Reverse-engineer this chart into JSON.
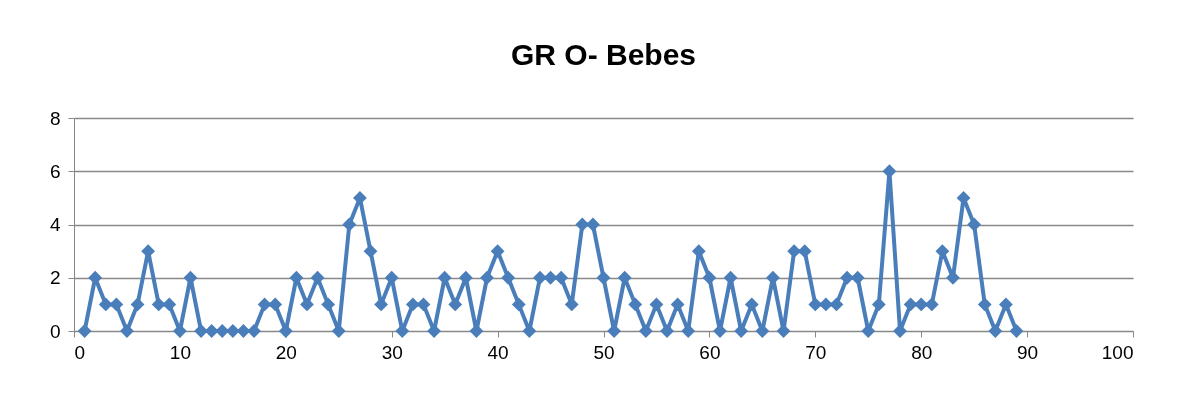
{
  "chart_data": {
    "type": "line",
    "title": "GR O- Bebes",
    "x": [
      1,
      2,
      3,
      4,
      5,
      6,
      7,
      8,
      9,
      10,
      11,
      12,
      13,
      14,
      15,
      16,
      17,
      18,
      19,
      20,
      21,
      22,
      23,
      24,
      25,
      26,
      27,
      28,
      29,
      30,
      31,
      32,
      33,
      34,
      35,
      36,
      37,
      38,
      39,
      40,
      41,
      42,
      43,
      44,
      45,
      46,
      47,
      48,
      49,
      50,
      51,
      52,
      53,
      54,
      55,
      56,
      57,
      58,
      59,
      60,
      61,
      62,
      63,
      64,
      65,
      66,
      67,
      68,
      69,
      70,
      71,
      72,
      73,
      74,
      75,
      76,
      77,
      78,
      79,
      80,
      81,
      82,
      83,
      84,
      85,
      86,
      87,
      88,
      89
    ],
    "series": [
      {
        "color": "#4a7ebb",
        "values": [
          0,
          2,
          1,
          1,
          0,
          1,
          3,
          1,
          1,
          0,
          2,
          0,
          0,
          0,
          0,
          0,
          0,
          1,
          1,
          0,
          2,
          1,
          2,
          1,
          0,
          4,
          5,
          3,
          1,
          2,
          0,
          1,
          1,
          0,
          2,
          1,
          2,
          0,
          2,
          3,
          2,
          1,
          0,
          2,
          2,
          2,
          1,
          4,
          4,
          2,
          0,
          2,
          1,
          0,
          1,
          0,
          1,
          0,
          3,
          2,
          0,
          2,
          0,
          1,
          0,
          2,
          0,
          3,
          3,
          1,
          1,
          1,
          2,
          2,
          0,
          1,
          6,
          0,
          1,
          1,
          1,
          3,
          2,
          5,
          4,
          1,
          0,
          1,
          0
        ]
      }
    ],
    "xlim": [
      0,
      100
    ],
    "xticks": [
      0,
      10,
      20,
      30,
      40,
      50,
      60,
      70,
      80,
      90,
      100
    ],
    "ylim": [
      0,
      8
    ],
    "yticks": [
      0,
      2,
      4,
      6,
      8
    ],
    "grid": "y",
    "marker": "diamond",
    "line_style": "solid"
  }
}
